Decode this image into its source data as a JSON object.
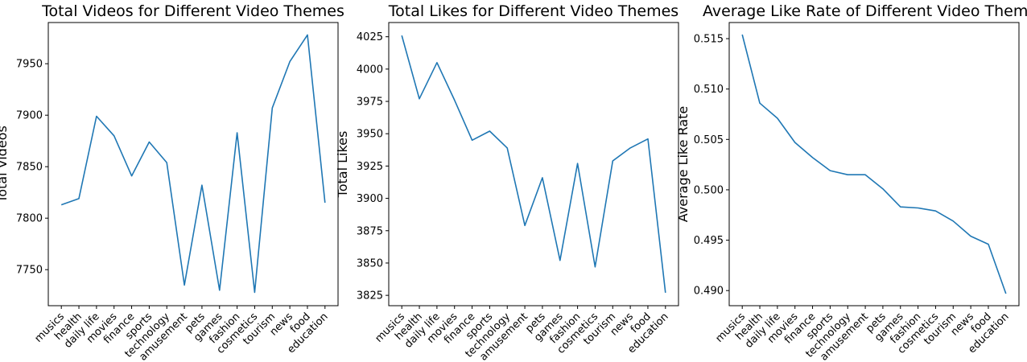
{
  "chart_data": [
    {
      "type": "line",
      "title": "Total Videos for Different Video Themes",
      "xlabel": "",
      "ylabel": "Total Videos",
      "categories": [
        "musics",
        "health",
        "daily life",
        "movies",
        "finance",
        "sports",
        "technology",
        "amusement",
        "pets",
        "games",
        "fashion",
        "cosmetics",
        "tourism",
        "news",
        "food",
        "education"
      ],
      "values": [
        7813,
        7819,
        7899,
        7880,
        7841,
        7874,
        7854,
        7735,
        7832,
        7730,
        7883,
        7728,
        7907,
        7952,
        7978,
        7815
      ],
      "yticks": [
        7750,
        7800,
        7850,
        7900,
        7950
      ],
      "ytick_labels": [
        "7750",
        "7800",
        "7850",
        "7900",
        "7950"
      ],
      "ylim": [
        7715,
        7990
      ],
      "color": "#1f77b4"
    },
    {
      "type": "line",
      "title": "Total Likes for Different Video Themes",
      "xlabel": "",
      "ylabel": "Total Likes",
      "categories": [
        "musics",
        "health",
        "daily life",
        "movies",
        "finance",
        "sports",
        "technology",
        "amusement",
        "pets",
        "games",
        "fashion",
        "cosmetics",
        "tourism",
        "news",
        "food",
        "education"
      ],
      "values": [
        4026,
        3977,
        4005,
        3976,
        3945,
        3952,
        3939,
        3879,
        3916,
        3852,
        3927,
        3847,
        3929,
        3939,
        3946,
        3827
      ],
      "yticks": [
        3825,
        3850,
        3875,
        3900,
        3925,
        3950,
        3975,
        4000,
        4025
      ],
      "ytick_labels": [
        "3825",
        "3850",
        "3875",
        "3900",
        "3925",
        "3950",
        "3975",
        "4000",
        "4025"
      ],
      "ylim": [
        3817,
        4036
      ],
      "color": "#1f77b4"
    },
    {
      "type": "line",
      "title": "Average Like Rate of Different Video Themes",
      "xlabel": "",
      "ylabel": "Average Like Rate",
      "categories": [
        "musics",
        "health",
        "daily life",
        "movies",
        "finance",
        "sports",
        "technology",
        "amusement",
        "pets",
        "games",
        "fashion",
        "cosmetics",
        "tourism",
        "news",
        "food",
        "education"
      ],
      "values": [
        0.5154,
        0.5086,
        0.5071,
        0.5047,
        0.5032,
        0.5019,
        0.5015,
        0.5015,
        0.5001,
        0.4983,
        0.4982,
        0.4979,
        0.4969,
        0.4954,
        0.4946,
        0.4897
      ],
      "yticks": [
        0.49,
        0.495,
        0.5,
        0.505,
        0.51,
        0.515
      ],
      "ytick_labels": [
        "0.490",
        "0.495",
        "0.500",
        "0.505",
        "0.510",
        "0.515"
      ],
      "ylim": [
        0.4885,
        0.5166
      ],
      "color": "#1f77b4"
    }
  ]
}
